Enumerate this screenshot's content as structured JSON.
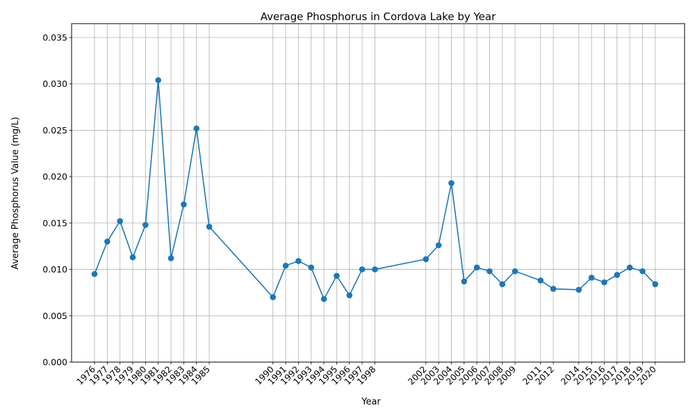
{
  "chart_data": {
    "type": "line",
    "title": "Average Phosphorus in Cordova Lake by Year",
    "xlabel": "Year",
    "ylabel": "Average Phosphorus Value (mg/L)",
    "ylim": [
      0,
      0.0365
    ],
    "xlim": [
      1974.2,
      2022.3
    ],
    "grid": true,
    "color": "#1f77b4",
    "yticks": [
      "0.000",
      "0.005",
      "0.010",
      "0.015",
      "0.020",
      "0.025",
      "0.030",
      "0.035"
    ],
    "x": [
      1976,
      1977,
      1978,
      1979,
      1980,
      1981,
      1982,
      1983,
      1984,
      1985,
      1990,
      1991,
      1992,
      1993,
      1994,
      1995,
      1996,
      1997,
      1998,
      2002,
      2003,
      2004,
      2005,
      2006,
      2007,
      2008,
      2009,
      2011,
      2012,
      2014,
      2015,
      2016,
      2017,
      2018,
      2019,
      2020
    ],
    "y": [
      0.0095,
      0.013,
      0.0152,
      0.0113,
      0.0148,
      0.0304,
      0.0112,
      0.017,
      0.0252,
      0.0146,
      0.007,
      0.0104,
      0.0109,
      0.0102,
      0.0068,
      0.0093,
      0.0072,
      0.01,
      0.01,
      0.0111,
      0.0126,
      0.0193,
      0.0087,
      0.0102,
      0.0098,
      0.0084,
      0.0098,
      0.0088,
      0.0079,
      0.0078,
      0.0091,
      0.0086,
      0.0094,
      0.0102,
      0.0098,
      0.0084
    ]
  }
}
